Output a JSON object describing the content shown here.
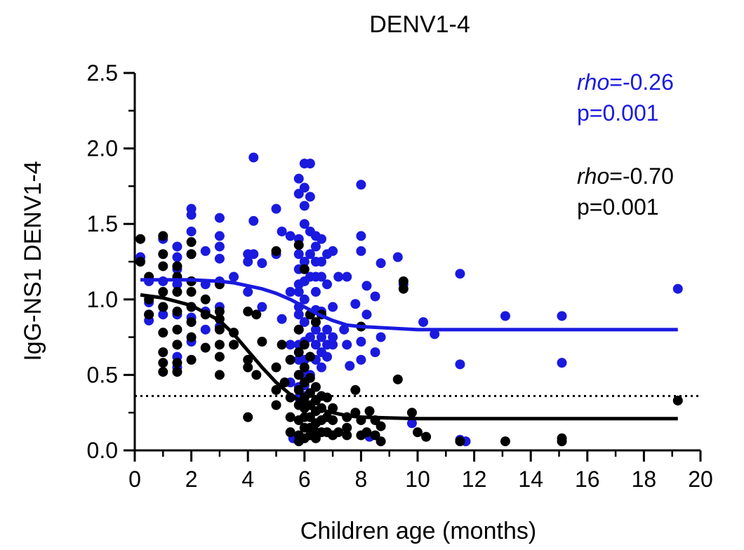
{
  "chart_data": {
    "type": "scatter",
    "title": "DENV1-4",
    "xlabel": "Children age (months)",
    "ylabel": "IgG-NS1 DENV1-4",
    "xlim": [
      0,
      20
    ],
    "ylim": [
      0,
      2.5
    ],
    "x_ticks": [
      "0",
      "2",
      "4",
      "6",
      "8",
      "10",
      "12",
      "14",
      "16",
      "18",
      "20"
    ],
    "y_ticks": [
      "0.0",
      "0.5",
      "1.0",
      "1.5",
      "2.0",
      "2.5"
    ],
    "grid": false,
    "reference_line": {
      "y": 0.36,
      "style": "dotted"
    },
    "annotations": {
      "blue_rho_label": "rho",
      "blue_rho_value": "=-0.26",
      "blue_p": "p=0.001",
      "black_rho_label": "rho",
      "black_rho_value": "=-0.70",
      "black_p": "p=0.001"
    },
    "series": [
      {
        "color": "#1a1adf",
        "fit": {
          "x": [
            0.2,
            1,
            2,
            3,
            3.5,
            4,
            4.5,
            5,
            5.5,
            6,
            6.5,
            7,
            7.5,
            8,
            9,
            10,
            12,
            15,
            19.2
          ],
          "y": [
            1.13,
            1.13,
            1.13,
            1.12,
            1.11,
            1.09,
            1.07,
            1.04,
            1.0,
            0.95,
            0.9,
            0.86,
            0.83,
            0.82,
            0.81,
            0.8,
            0.8,
            0.8,
            0.8
          ]
        },
        "points": [
          [
            0.2,
            1.28
          ],
          [
            0.5,
            1.12
          ],
          [
            0.5,
            0.98
          ],
          [
            0.5,
            0.9
          ],
          [
            0.5,
            0.86
          ],
          [
            1,
            1.4
          ],
          [
            1,
            1.12
          ],
          [
            1,
            0.95
          ],
          [
            1,
            0.9
          ],
          [
            1.5,
            1.35
          ],
          [
            1.5,
            1.28
          ],
          [
            1.5,
            1.2
          ],
          [
            1.5,
            1.1
          ],
          [
            1.5,
            0.9
          ],
          [
            1.5,
            0.7
          ],
          [
            1.5,
            0.62
          ],
          [
            1.5,
            0.55
          ],
          [
            2,
            1.6
          ],
          [
            2,
            1.56
          ],
          [
            2,
            1.45
          ],
          [
            2,
            1.3
          ],
          [
            2,
            1.12
          ],
          [
            2,
            0.95
          ],
          [
            2,
            0.88
          ],
          [
            2,
            0.72
          ],
          [
            2.5,
            1.32
          ],
          [
            2.5,
            1.1
          ],
          [
            2.5,
            0.92
          ],
          [
            2.5,
            0.8
          ],
          [
            3,
            1.54
          ],
          [
            3,
            1.42
          ],
          [
            3,
            1.35
          ],
          [
            3,
            1.27
          ],
          [
            3,
            1.12
          ],
          [
            3,
            0.95
          ],
          [
            3,
            0.82
          ],
          [
            3.5,
            1.15
          ],
          [
            4,
            1.3
          ],
          [
            4,
            1.25
          ],
          [
            4,
            1.05
          ],
          [
            4.2,
            1.94
          ],
          [
            4.2,
            1.52
          ],
          [
            4.2,
            1.3
          ],
          [
            4.5,
            1.24
          ],
          [
            4.5,
            0.95
          ],
          [
            5,
            1.6
          ],
          [
            5,
            1.3
          ],
          [
            5.2,
            1.45
          ],
          [
            5.5,
            1.42
          ],
          [
            5.2,
            0.87
          ],
          [
            5.5,
            1.05
          ],
          [
            5.5,
            0.7
          ],
          [
            5.5,
            0.6
          ],
          [
            5.5,
            0.45
          ],
          [
            5.8,
            1.8
          ],
          [
            5.8,
            1.7
          ],
          [
            5.8,
            1.4
          ],
          [
            5.8,
            1.3
          ],
          [
            5.8,
            1.2
          ],
          [
            5.8,
            1.1
          ],
          [
            5.8,
            1.05
          ],
          [
            5.8,
            0.95
          ],
          [
            5.8,
            0.9
          ],
          [
            5.8,
            0.8
          ],
          [
            5.8,
            0.7
          ],
          [
            5.8,
            0.6
          ],
          [
            5.8,
            0.5
          ],
          [
            5.8,
            0.42
          ],
          [
            5.8,
            0.35
          ],
          [
            6,
            1.9
          ],
          [
            6,
            1.74
          ],
          [
            6,
            1.62
          ],
          [
            6,
            1.5
          ],
          [
            6,
            1.25
          ],
          [
            6,
            1.12
          ],
          [
            6,
            1.0
          ],
          [
            6,
            0.85
          ],
          [
            6,
            0.72
          ],
          [
            6,
            0.6
          ],
          [
            6,
            0.5
          ],
          [
            6,
            0.43
          ],
          [
            6,
            0.36
          ],
          [
            6.2,
            1.9
          ],
          [
            6.2,
            1.68
          ],
          [
            6.2,
            1.45
          ],
          [
            6.2,
            1.3
          ],
          [
            6.2,
            1.15
          ],
          [
            6.2,
            0.9
          ],
          [
            6.2,
            0.75
          ],
          [
            6.2,
            0.62
          ],
          [
            6.2,
            0.5
          ],
          [
            6.4,
            1.42
          ],
          [
            6.4,
            1.35
          ],
          [
            6.4,
            1.25
          ],
          [
            6.4,
            1.15
          ],
          [
            6.4,
            1.05
          ],
          [
            6.4,
            0.93
          ],
          [
            6.4,
            0.8
          ],
          [
            6.4,
            0.7
          ],
          [
            6.4,
            0.6
          ],
          [
            6.6,
            1.4
          ],
          [
            6.6,
            1.25
          ],
          [
            6.6,
            1.15
          ],
          [
            6.6,
            0.92
          ],
          [
            6.6,
            0.75
          ],
          [
            6.6,
            0.65
          ],
          [
            6.6,
            0.55
          ],
          [
            6.8,
            1.3
          ],
          [
            6.8,
            1.1
          ],
          [
            6.8,
            0.8
          ],
          [
            6.8,
            0.7
          ],
          [
            6.8,
            0.62
          ],
          [
            7,
            1.32
          ],
          [
            7,
            0.95
          ],
          [
            7,
            0.75
          ],
          [
            7,
            0.7
          ],
          [
            7.2,
            1.15
          ],
          [
            7.4,
            0.8
          ],
          [
            7.5,
            1.15
          ],
          [
            7.5,
            0.7
          ],
          [
            7.6,
            0.56
          ],
          [
            7.8,
            0.97
          ],
          [
            8,
            1.76
          ],
          [
            8,
            1.42
          ],
          [
            8,
            1.32
          ],
          [
            8,
            0.72
          ],
          [
            8,
            0.6
          ],
          [
            8.2,
            1.09
          ],
          [
            8.2,
            0.9
          ],
          [
            8.5,
            1.02
          ],
          [
            8.5,
            0.65
          ],
          [
            8.7,
            1.24
          ],
          [
            8.7,
            0.75
          ],
          [
            9.3,
            1.28
          ],
          [
            9.5,
            1.1
          ],
          [
            9.8,
            0.18
          ],
          [
            10.2,
            0.85
          ],
          [
            10.6,
            0.77
          ],
          [
            11.5,
            1.17
          ],
          [
            11.5,
            0.57
          ],
          [
            11.7,
            0.06
          ],
          [
            13.1,
            0.89
          ],
          [
            15.1,
            0.89
          ],
          [
            15.1,
            0.58
          ],
          [
            19.2,
            1.07
          ],
          [
            8.3,
            0.09
          ],
          [
            5.6,
            0.08
          ],
          [
            11.5,
            0.07
          ]
        ]
      },
      {
        "color": "#000000",
        "fit": {
          "x": [
            0.2,
            1,
            2,
            3,
            3.5,
            4,
            4.5,
            5,
            5.5,
            6,
            6.5,
            7,
            7.5,
            8,
            9,
            10,
            12,
            15,
            19.2
          ],
          "y": [
            1.03,
            1.01,
            0.96,
            0.86,
            0.77,
            0.66,
            0.55,
            0.45,
            0.37,
            0.31,
            0.27,
            0.25,
            0.23,
            0.22,
            0.215,
            0.21,
            0.21,
            0.21,
            0.21
          ]
        },
        "points": [
          [
            0.2,
            1.4
          ],
          [
            0.2,
            1.25
          ],
          [
            0.5,
            1.15
          ],
          [
            0.5,
            1.0
          ],
          [
            0.5,
            0.9
          ],
          [
            1,
            1.42
          ],
          [
            1,
            1.3
          ],
          [
            1,
            1.22
          ],
          [
            1,
            1.05
          ],
          [
            1,
            0.95
          ],
          [
            1,
            0.78
          ],
          [
            1,
            0.65
          ],
          [
            1,
            0.58
          ],
          [
            1,
            0.52
          ],
          [
            1.5,
            1.22
          ],
          [
            1.5,
            1.15
          ],
          [
            1.5,
            1.05
          ],
          [
            1.5,
            0.92
          ],
          [
            1.5,
            0.8
          ],
          [
            1.5,
            0.7
          ],
          [
            1.5,
            0.58
          ],
          [
            1.5,
            0.52
          ],
          [
            2,
            1.38
          ],
          [
            2,
            1.3
          ],
          [
            2,
            1.12
          ],
          [
            2,
            1.05
          ],
          [
            2,
            0.95
          ],
          [
            2,
            0.85
          ],
          [
            2,
            0.75
          ],
          [
            2,
            0.6
          ],
          [
            2.5,
            1.0
          ],
          [
            2.5,
            0.9
          ],
          [
            2.5,
            0.68
          ],
          [
            3,
            1.1
          ],
          [
            3,
            0.92
          ],
          [
            3,
            0.87
          ],
          [
            3,
            0.8
          ],
          [
            3,
            0.7
          ],
          [
            3,
            0.62
          ],
          [
            3,
            0.5
          ],
          [
            3.5,
            0.78
          ],
          [
            3.5,
            0.7
          ],
          [
            4,
            0.92
          ],
          [
            4,
            0.6
          ],
          [
            4,
            0.55
          ],
          [
            4,
            0.22
          ],
          [
            4.3,
            0.9
          ],
          [
            4.3,
            0.5
          ],
          [
            4.5,
            0.72
          ],
          [
            5,
            1.32
          ],
          [
            5,
            0.55
          ],
          [
            5,
            0.4
          ],
          [
            5,
            0.3
          ],
          [
            5.2,
            0.7
          ],
          [
            5.3,
            0.45
          ],
          [
            5.5,
            0.6
          ],
          [
            5.5,
            0.35
          ],
          [
            5.5,
            0.22
          ],
          [
            5.5,
            0.12
          ],
          [
            5.8,
            1.36
          ],
          [
            5.8,
            0.8
          ],
          [
            5.8,
            0.65
          ],
          [
            5.8,
            0.5
          ],
          [
            5.8,
            0.4
          ],
          [
            5.8,
            0.3
          ],
          [
            5.8,
            0.2
          ],
          [
            5.8,
            0.1
          ],
          [
            5.8,
            0.06
          ],
          [
            6,
            1.2
          ],
          [
            6,
            0.7
          ],
          [
            6,
            0.55
          ],
          [
            6,
            0.45
          ],
          [
            6,
            0.35
          ],
          [
            6,
            0.28
          ],
          [
            6,
            0.22
          ],
          [
            6,
            0.15
          ],
          [
            6,
            0.08
          ],
          [
            6.2,
            0.9
          ],
          [
            6.2,
            0.62
          ],
          [
            6.2,
            0.48
          ],
          [
            6.2,
            0.38
          ],
          [
            6.2,
            0.3
          ],
          [
            6.2,
            0.22
          ],
          [
            6.2,
            0.15
          ],
          [
            6.2,
            0.1
          ],
          [
            6.4,
            0.85
          ],
          [
            6.4,
            0.42
          ],
          [
            6.4,
            0.33
          ],
          [
            6.4,
            0.26
          ],
          [
            6.4,
            0.18
          ],
          [
            6.4,
            0.12
          ],
          [
            6.4,
            0.08
          ],
          [
            6.6,
            0.9
          ],
          [
            6.6,
            0.36
          ],
          [
            6.6,
            0.28
          ],
          [
            6.6,
            0.2
          ],
          [
            6.6,
            0.12
          ],
          [
            6.8,
            0.35
          ],
          [
            6.8,
            0.22
          ],
          [
            6.8,
            0.12
          ],
          [
            7,
            0.28
          ],
          [
            7,
            0.2
          ],
          [
            7,
            0.1
          ],
          [
            7.2,
            0.12
          ],
          [
            7.5,
            0.22
          ],
          [
            7.5,
            0.15
          ],
          [
            7.5,
            0.1
          ],
          [
            7.8,
            0.4
          ],
          [
            7.8,
            0.25
          ],
          [
            8,
            0.82
          ],
          [
            8,
            0.2
          ],
          [
            8,
            0.1
          ],
          [
            8.2,
            0.12
          ],
          [
            8.3,
            0.26
          ],
          [
            8.5,
            0.2
          ],
          [
            8.5,
            0.1
          ],
          [
            8.7,
            0.06
          ],
          [
            8.7,
            0.16
          ],
          [
            9.3,
            0.47
          ],
          [
            9.5,
            1.12
          ],
          [
            9.5,
            1.07
          ],
          [
            9.8,
            0.25
          ],
          [
            10,
            0.12
          ],
          [
            10.3,
            0.09
          ],
          [
            11.5,
            0.06
          ],
          [
            13.1,
            0.06
          ],
          [
            15.1,
            0.06
          ],
          [
            15.1,
            0.08
          ],
          [
            19.2,
            0.33
          ]
        ]
      }
    ]
  }
}
